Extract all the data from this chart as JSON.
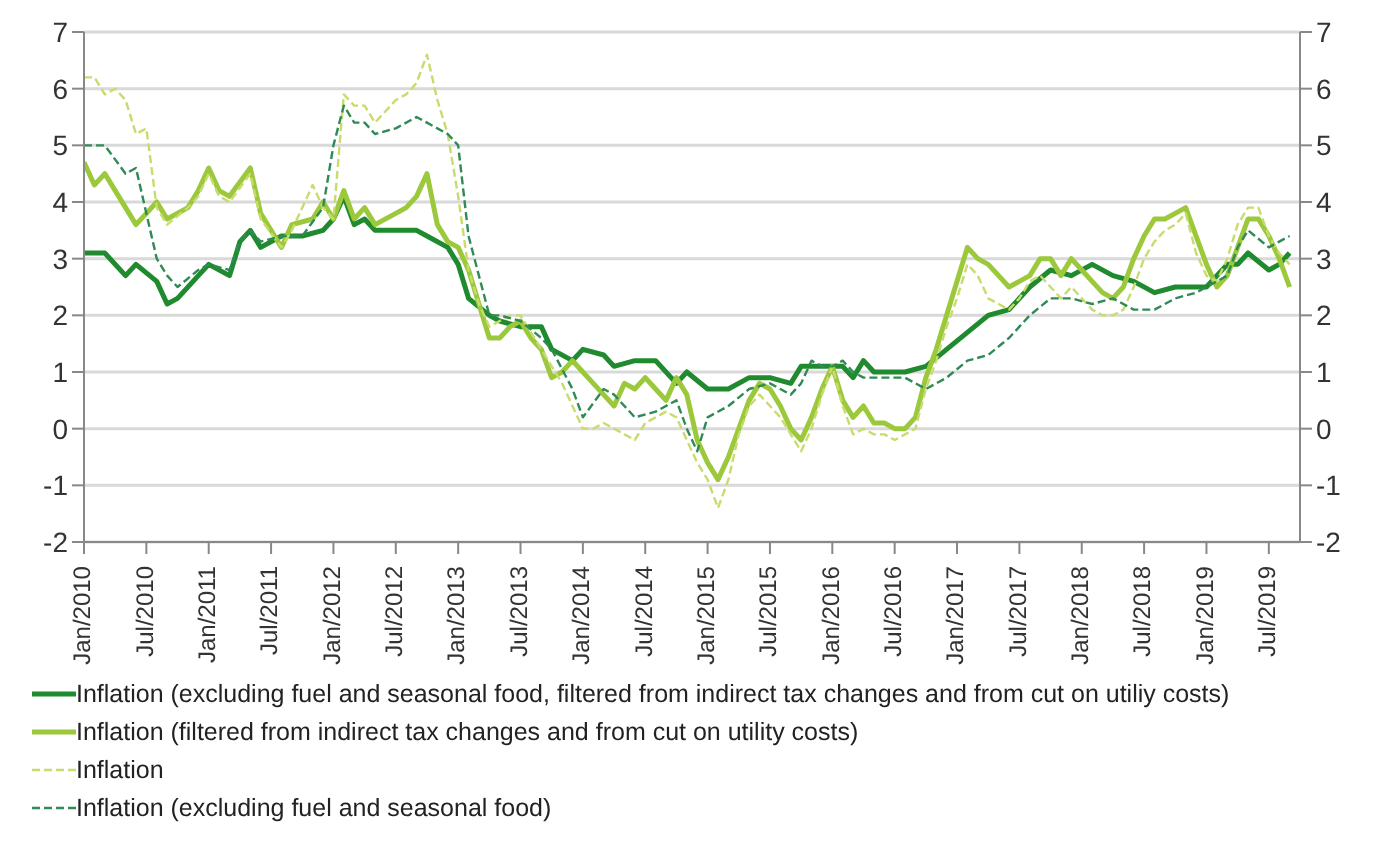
{
  "chart_data": {
    "type": "line",
    "xlim": [
      "2010-01",
      "2019-10"
    ],
    "xticks": [
      {
        "value": "2010-01",
        "label": "Jan/2010"
      },
      {
        "value": "2010-07",
        "label": "Jul/2010"
      },
      {
        "value": "2011-01",
        "label": "Jan/2011"
      },
      {
        "value": "2011-07",
        "label": "Jul/2011"
      },
      {
        "value": "2012-01",
        "label": "Jan/2012"
      },
      {
        "value": "2012-07",
        "label": "Jul/2012"
      },
      {
        "value": "2013-01",
        "label": "Jan/2013"
      },
      {
        "value": "2013-07",
        "label": "Jul/2013"
      },
      {
        "value": "2014-01",
        "label": "Jan/2014"
      },
      {
        "value": "2014-07",
        "label": "Jul/2014"
      },
      {
        "value": "2015-01",
        "label": "Jan/2015"
      },
      {
        "value": "2015-07",
        "label": "Jul/2015"
      },
      {
        "value": "2016-01",
        "label": "Jan/2016"
      },
      {
        "value": "2016-07",
        "label": "Jul/2016"
      },
      {
        "value": "2017-01",
        "label": "Jan/2017"
      },
      {
        "value": "2017-07",
        "label": "Jul/2017"
      },
      {
        "value": "2018-01",
        "label": "Jan/2018"
      },
      {
        "value": "2018-07",
        "label": "Jul/2018"
      },
      {
        "value": "2019-01",
        "label": "Jan/2019"
      },
      {
        "value": "2019-07",
        "label": "Jul/2019"
      }
    ],
    "ylim": [
      -2,
      7
    ],
    "yticks": [
      -2,
      -1,
      0,
      1,
      2,
      3,
      4,
      5,
      6,
      7
    ],
    "y2lim": [
      -2,
      7
    ],
    "y2ticks": [
      -2,
      -1,
      0,
      1,
      2,
      3,
      4,
      5,
      6,
      7
    ],
    "grid": "y",
    "legend": "bottom",
    "marker": "none",
    "series": [
      {
        "name": "Inflation (excluding fuel and seasonal food, filtered from indirect tax changes and from cut on utiliy costs)",
        "color": "#1f8a2e",
        "line_style": "solid",
        "x": [
          "2010-01",
          "2010-03",
          "2010-05",
          "2010-06",
          "2010-08",
          "2010-09",
          "2010-10",
          "2010-12",
          "2011-01",
          "2011-03",
          "2011-04",
          "2011-05",
          "2011-06",
          "2011-08",
          "2011-10",
          "2011-12",
          "2012-01",
          "2012-02",
          "2012-03",
          "2012-04",
          "2012-05",
          "2012-07",
          "2012-09",
          "2012-10",
          "2012-12",
          "2013-01",
          "2013-02",
          "2013-04",
          "2013-05",
          "2013-07",
          "2013-09",
          "2013-10",
          "2013-12",
          "2014-01",
          "2014-03",
          "2014-04",
          "2014-06",
          "2014-08",
          "2014-10",
          "2014-11",
          "2015-01",
          "2015-03",
          "2015-05",
          "2015-07",
          "2015-09",
          "2015-10",
          "2015-12",
          "2016-01",
          "2016-02",
          "2016-03",
          "2016-04",
          "2016-05",
          "2016-06",
          "2016-08",
          "2016-10",
          "2016-12",
          "2017-02",
          "2017-04",
          "2017-06",
          "2017-08",
          "2017-10",
          "2017-12",
          "2018-02",
          "2018-04",
          "2018-06",
          "2018-08",
          "2018-10",
          "2018-12",
          "2019-01",
          "2019-03",
          "2019-04",
          "2019-05",
          "2019-07",
          "2019-08",
          "2019-09"
        ],
        "values": [
          3.1,
          3.1,
          2.7,
          2.9,
          2.6,
          2.2,
          2.3,
          2.7,
          2.9,
          2.7,
          3.3,
          3.5,
          3.2,
          3.4,
          3.4,
          3.5,
          3.7,
          4.1,
          3.6,
          3.7,
          3.5,
          3.5,
          3.5,
          3.4,
          3.2,
          2.9,
          2.3,
          2.0,
          1.9,
          1.8,
          1.8,
          1.4,
          1.2,
          1.4,
          1.3,
          1.1,
          1.2,
          1.2,
          0.8,
          1.0,
          0.7,
          0.7,
          0.9,
          0.9,
          0.8,
          1.1,
          1.1,
          1.1,
          1.1,
          0.9,
          1.2,
          1.0,
          1.0,
          1.0,
          1.1,
          1.4,
          1.7,
          2.0,
          2.1,
          2.5,
          2.8,
          2.7,
          2.9,
          2.7,
          2.6,
          2.4,
          2.5,
          2.5,
          2.5,
          2.9,
          2.9,
          3.1,
          2.8,
          2.9,
          3.1
        ]
      },
      {
        "name": "Inflation (filtered from indirect tax changes and from cut on utility costs)",
        "color": "#9cc83c",
        "line_style": "solid",
        "x": [
          "2010-01",
          "2010-02",
          "2010-03",
          "2010-04",
          "2010-05",
          "2010-06",
          "2010-07",
          "2010-08",
          "2010-09",
          "2010-11",
          "2010-12",
          "2011-01",
          "2011-02",
          "2011-03",
          "2011-05",
          "2011-06",
          "2011-08",
          "2011-09",
          "2011-11",
          "2011-12",
          "2012-01",
          "2012-02",
          "2012-03",
          "2012-04",
          "2012-05",
          "2012-07",
          "2012-08",
          "2012-09",
          "2012-10",
          "2012-11",
          "2012-12",
          "2013-01",
          "2013-02",
          "2013-03",
          "2013-04",
          "2013-05",
          "2013-06",
          "2013-07",
          "2013-08",
          "2013-09",
          "2013-10",
          "2013-11",
          "2013-12",
          "2014-01",
          "2014-02",
          "2014-03",
          "2014-04",
          "2014-05",
          "2014-06",
          "2014-07",
          "2014-08",
          "2014-09",
          "2014-10",
          "2014-11",
          "2014-12",
          "2015-01",
          "2015-02",
          "2015-03",
          "2015-04",
          "2015-05",
          "2015-06",
          "2015-07",
          "2015-08",
          "2015-09",
          "2015-10",
          "2015-11",
          "2015-12",
          "2016-01",
          "2016-02",
          "2016-03",
          "2016-04",
          "2016-05",
          "2016-06",
          "2016-07",
          "2016-08",
          "2016-09",
          "2016-10",
          "2016-11",
          "2016-12",
          "2017-01",
          "2017-02",
          "2017-03",
          "2017-04",
          "2017-05",
          "2017-06",
          "2017-07",
          "2017-08",
          "2017-09",
          "2017-10",
          "2017-11",
          "2017-12",
          "2018-01",
          "2018-02",
          "2018-03",
          "2018-04",
          "2018-05",
          "2018-06",
          "2018-07",
          "2018-08",
          "2018-09",
          "2018-10",
          "2018-11",
          "2018-12",
          "2019-01",
          "2019-02",
          "2019-03",
          "2019-04",
          "2019-05",
          "2019-06",
          "2019-07",
          "2019-08",
          "2019-09"
        ],
        "values": [
          4.7,
          4.3,
          4.5,
          4.2,
          3.9,
          3.6,
          3.8,
          4.0,
          3.7,
          3.9,
          4.2,
          4.6,
          4.2,
          4.1,
          4.6,
          3.8,
          3.2,
          3.6,
          3.7,
          4.0,
          3.7,
          4.2,
          3.7,
          3.9,
          3.6,
          3.8,
          3.9,
          4.1,
          4.5,
          3.6,
          3.3,
          3.2,
          2.8,
          2.2,
          1.6,
          1.6,
          1.8,
          1.9,
          1.6,
          1.4,
          0.9,
          1.0,
          1.2,
          1.0,
          0.8,
          0.6,
          0.4,
          0.8,
          0.7,
          0.9,
          0.7,
          0.5,
          0.9,
          0.6,
          -0.2,
          -0.6,
          -0.9,
          -0.5,
          0.0,
          0.5,
          0.8,
          0.7,
          0.4,
          0.0,
          -0.2,
          0.2,
          0.7,
          1.1,
          0.5,
          0.2,
          0.4,
          0.1,
          0.1,
          0.0,
          0.0,
          0.2,
          0.9,
          1.4,
          2.0,
          2.6,
          3.2,
          3.0,
          2.9,
          2.7,
          2.5,
          2.6,
          2.7,
          3.0,
          3.0,
          2.7,
          3.0,
          2.8,
          2.6,
          2.4,
          2.3,
          2.5,
          3.0,
          3.4,
          3.7,
          3.7,
          3.8,
          3.9,
          3.4,
          2.9,
          2.5,
          2.7,
          3.2,
          3.7,
          3.7,
          3.4,
          3.0,
          2.5
        ]
      },
      {
        "name": "Inflation",
        "color": "#c8dc6e",
        "line_style": "dashed",
        "x": [
          "2010-01",
          "2010-02",
          "2010-03",
          "2010-04",
          "2010-05",
          "2010-06",
          "2010-07",
          "2010-08",
          "2010-09",
          "2010-11",
          "2010-12",
          "2011-01",
          "2011-02",
          "2011-03",
          "2011-05",
          "2011-06",
          "2011-08",
          "2011-09",
          "2011-11",
          "2011-12",
          "2012-01",
          "2012-02",
          "2012-03",
          "2012-04",
          "2012-05",
          "2012-07",
          "2012-08",
          "2012-09",
          "2012-10",
          "2012-11",
          "2012-12",
          "2013-01",
          "2013-02",
          "2013-03",
          "2013-04",
          "2013-05",
          "2013-06",
          "2013-07",
          "2013-08",
          "2013-09",
          "2013-10",
          "2013-11",
          "2013-12",
          "2014-01",
          "2014-02",
          "2014-03",
          "2014-04",
          "2014-05",
          "2014-06",
          "2014-07",
          "2014-08",
          "2014-09",
          "2014-10",
          "2014-11",
          "2014-12",
          "2015-01",
          "2015-02",
          "2015-03",
          "2015-04",
          "2015-05",
          "2015-06",
          "2015-07",
          "2015-08",
          "2015-09",
          "2015-10",
          "2015-11",
          "2015-12",
          "2016-01",
          "2016-02",
          "2016-03",
          "2016-04",
          "2016-05",
          "2016-06",
          "2016-07",
          "2016-08",
          "2016-09",
          "2016-10",
          "2016-11",
          "2016-12",
          "2017-01",
          "2017-02",
          "2017-03",
          "2017-04",
          "2017-05",
          "2017-06",
          "2017-07",
          "2017-08",
          "2017-09",
          "2017-10",
          "2017-11",
          "2017-12",
          "2018-01",
          "2018-02",
          "2018-03",
          "2018-04",
          "2018-05",
          "2018-06",
          "2018-07",
          "2018-08",
          "2018-09",
          "2018-10",
          "2018-11",
          "2018-12",
          "2019-01",
          "2019-02",
          "2019-03",
          "2019-04",
          "2019-05",
          "2019-06",
          "2019-07",
          "2019-08",
          "2019-09"
        ],
        "values": [
          6.2,
          6.2,
          5.9,
          6.0,
          5.8,
          5.2,
          5.3,
          3.9,
          3.6,
          3.9,
          4.1,
          4.5,
          4.1,
          4.0,
          4.5,
          3.7,
          3.2,
          3.5,
          4.3,
          3.9,
          3.7,
          5.9,
          5.7,
          5.7,
          5.4,
          5.8,
          5.9,
          6.1,
          6.6,
          5.8,
          5.2,
          4.1,
          2.8,
          2.2,
          1.8,
          1.9,
          2.0,
          2.0,
          1.7,
          1.4,
          1.1,
          0.8,
          0.4,
          0.0,
          0.0,
          0.1,
          0.0,
          -0.1,
          -0.2,
          0.1,
          0.2,
          0.3,
          0.2,
          -0.2,
          -0.6,
          -0.9,
          -1.4,
          -0.9,
          -0.1,
          0.4,
          0.6,
          0.4,
          0.2,
          -0.1,
          -0.4,
          0.0,
          0.6,
          1.1,
          0.4,
          -0.1,
          0.0,
          -0.1,
          -0.1,
          -0.2,
          -0.1,
          0.0,
          0.7,
          1.2,
          1.8,
          2.3,
          2.9,
          2.7,
          2.3,
          2.2,
          2.1,
          2.3,
          2.6,
          2.7,
          2.5,
          2.3,
          2.5,
          2.3,
          2.1,
          2.0,
          2.0,
          2.1,
          2.5,
          3.0,
          3.3,
          3.5,
          3.6,
          3.8,
          3.1,
          2.7,
          2.6,
          3.0,
          3.6,
          3.9,
          3.9,
          3.4,
          3.1,
          2.9
        ]
      },
      {
        "name": "Inflation (excluding fuel and seasonal food)",
        "color": "#2f8a55",
        "line_style": "dashed",
        "x": [
          "2010-01",
          "2010-03",
          "2010-05",
          "2010-06",
          "2010-08",
          "2010-09",
          "2010-10",
          "2010-12",
          "2011-01",
          "2011-03",
          "2011-04",
          "2011-05",
          "2011-06",
          "2011-08",
          "2011-10",
          "2011-12",
          "2012-01",
          "2012-02",
          "2012-03",
          "2012-04",
          "2012-05",
          "2012-07",
          "2012-09",
          "2012-10",
          "2012-12",
          "2013-01",
          "2013-02",
          "2013-04",
          "2013-05",
          "2013-07",
          "2013-09",
          "2013-10",
          "2013-12",
          "2014-01",
          "2014-03",
          "2014-04",
          "2014-06",
          "2014-08",
          "2014-10",
          "2014-11",
          "2014-12",
          "2015-01",
          "2015-03",
          "2015-05",
          "2015-07",
          "2015-09",
          "2015-10",
          "2015-11",
          "2015-12",
          "2016-01",
          "2016-02",
          "2016-03",
          "2016-04",
          "2016-05",
          "2016-06",
          "2016-08",
          "2016-10",
          "2016-12",
          "2017-02",
          "2017-04",
          "2017-06",
          "2017-08",
          "2017-10",
          "2017-12",
          "2018-02",
          "2018-04",
          "2018-06",
          "2018-08",
          "2018-10",
          "2018-12",
          "2019-01",
          "2019-03",
          "2019-04",
          "2019-05",
          "2019-07",
          "2019-08",
          "2019-09"
        ],
        "values": [
          5.0,
          5.0,
          4.5,
          4.6,
          3.0,
          2.7,
          2.5,
          2.8,
          2.9,
          2.8,
          3.3,
          3.5,
          3.3,
          3.4,
          3.4,
          3.9,
          5.0,
          5.7,
          5.4,
          5.4,
          5.2,
          5.3,
          5.5,
          5.4,
          5.2,
          5.0,
          3.4,
          2.0,
          2.0,
          1.9,
          1.6,
          1.4,
          0.7,
          0.2,
          0.7,
          0.6,
          0.2,
          0.3,
          0.5,
          0.0,
          -0.4,
          0.2,
          0.4,
          0.7,
          0.8,
          0.6,
          0.8,
          1.2,
          1.1,
          1.1,
          1.2,
          1.0,
          0.9,
          0.9,
          0.9,
          0.9,
          0.7,
          0.9,
          1.2,
          1.3,
          1.6,
          2.0,
          2.3,
          2.3,
          2.2,
          2.3,
          2.1,
          2.1,
          2.3,
          2.4,
          2.5,
          2.7,
          3.2,
          3.5,
          3.2,
          3.3,
          3.4
        ]
      }
    ]
  }
}
